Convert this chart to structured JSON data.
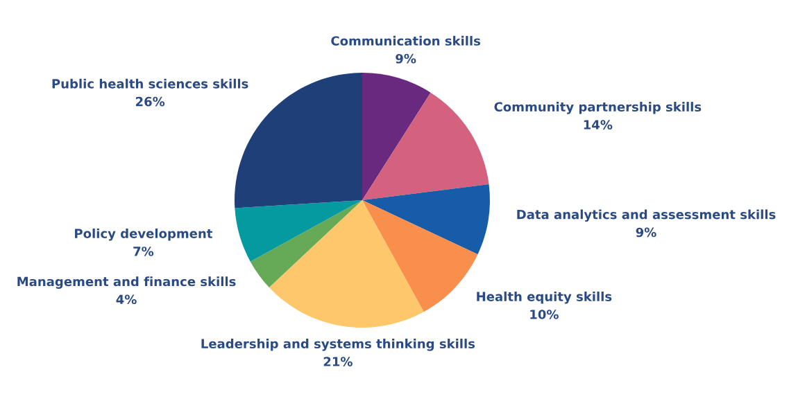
{
  "chart_data": {
    "type": "pie",
    "categories": [
      "Communication skills",
      "Community partnership skills",
      "Data analytics and assessment skills",
      "Health equity skills",
      "Leadership and systems thinking skills",
      "Management and finance skills",
      "Policy development",
      "Public health sciences skills"
    ],
    "values": [
      9,
      14,
      9,
      10,
      21,
      4,
      7,
      26
    ],
    "value_labels": [
      "9%",
      "14%",
      "9%",
      "10%",
      "21%",
      "4%",
      "7%",
      "26%"
    ],
    "colors": [
      "#68297f",
      "#d4627e",
      "#165ca8",
      "#f98f4d",
      "#fec76b",
      "#66a957",
      "#0599a0",
      "#1f3f78"
    ],
    "legend": false
  }
}
